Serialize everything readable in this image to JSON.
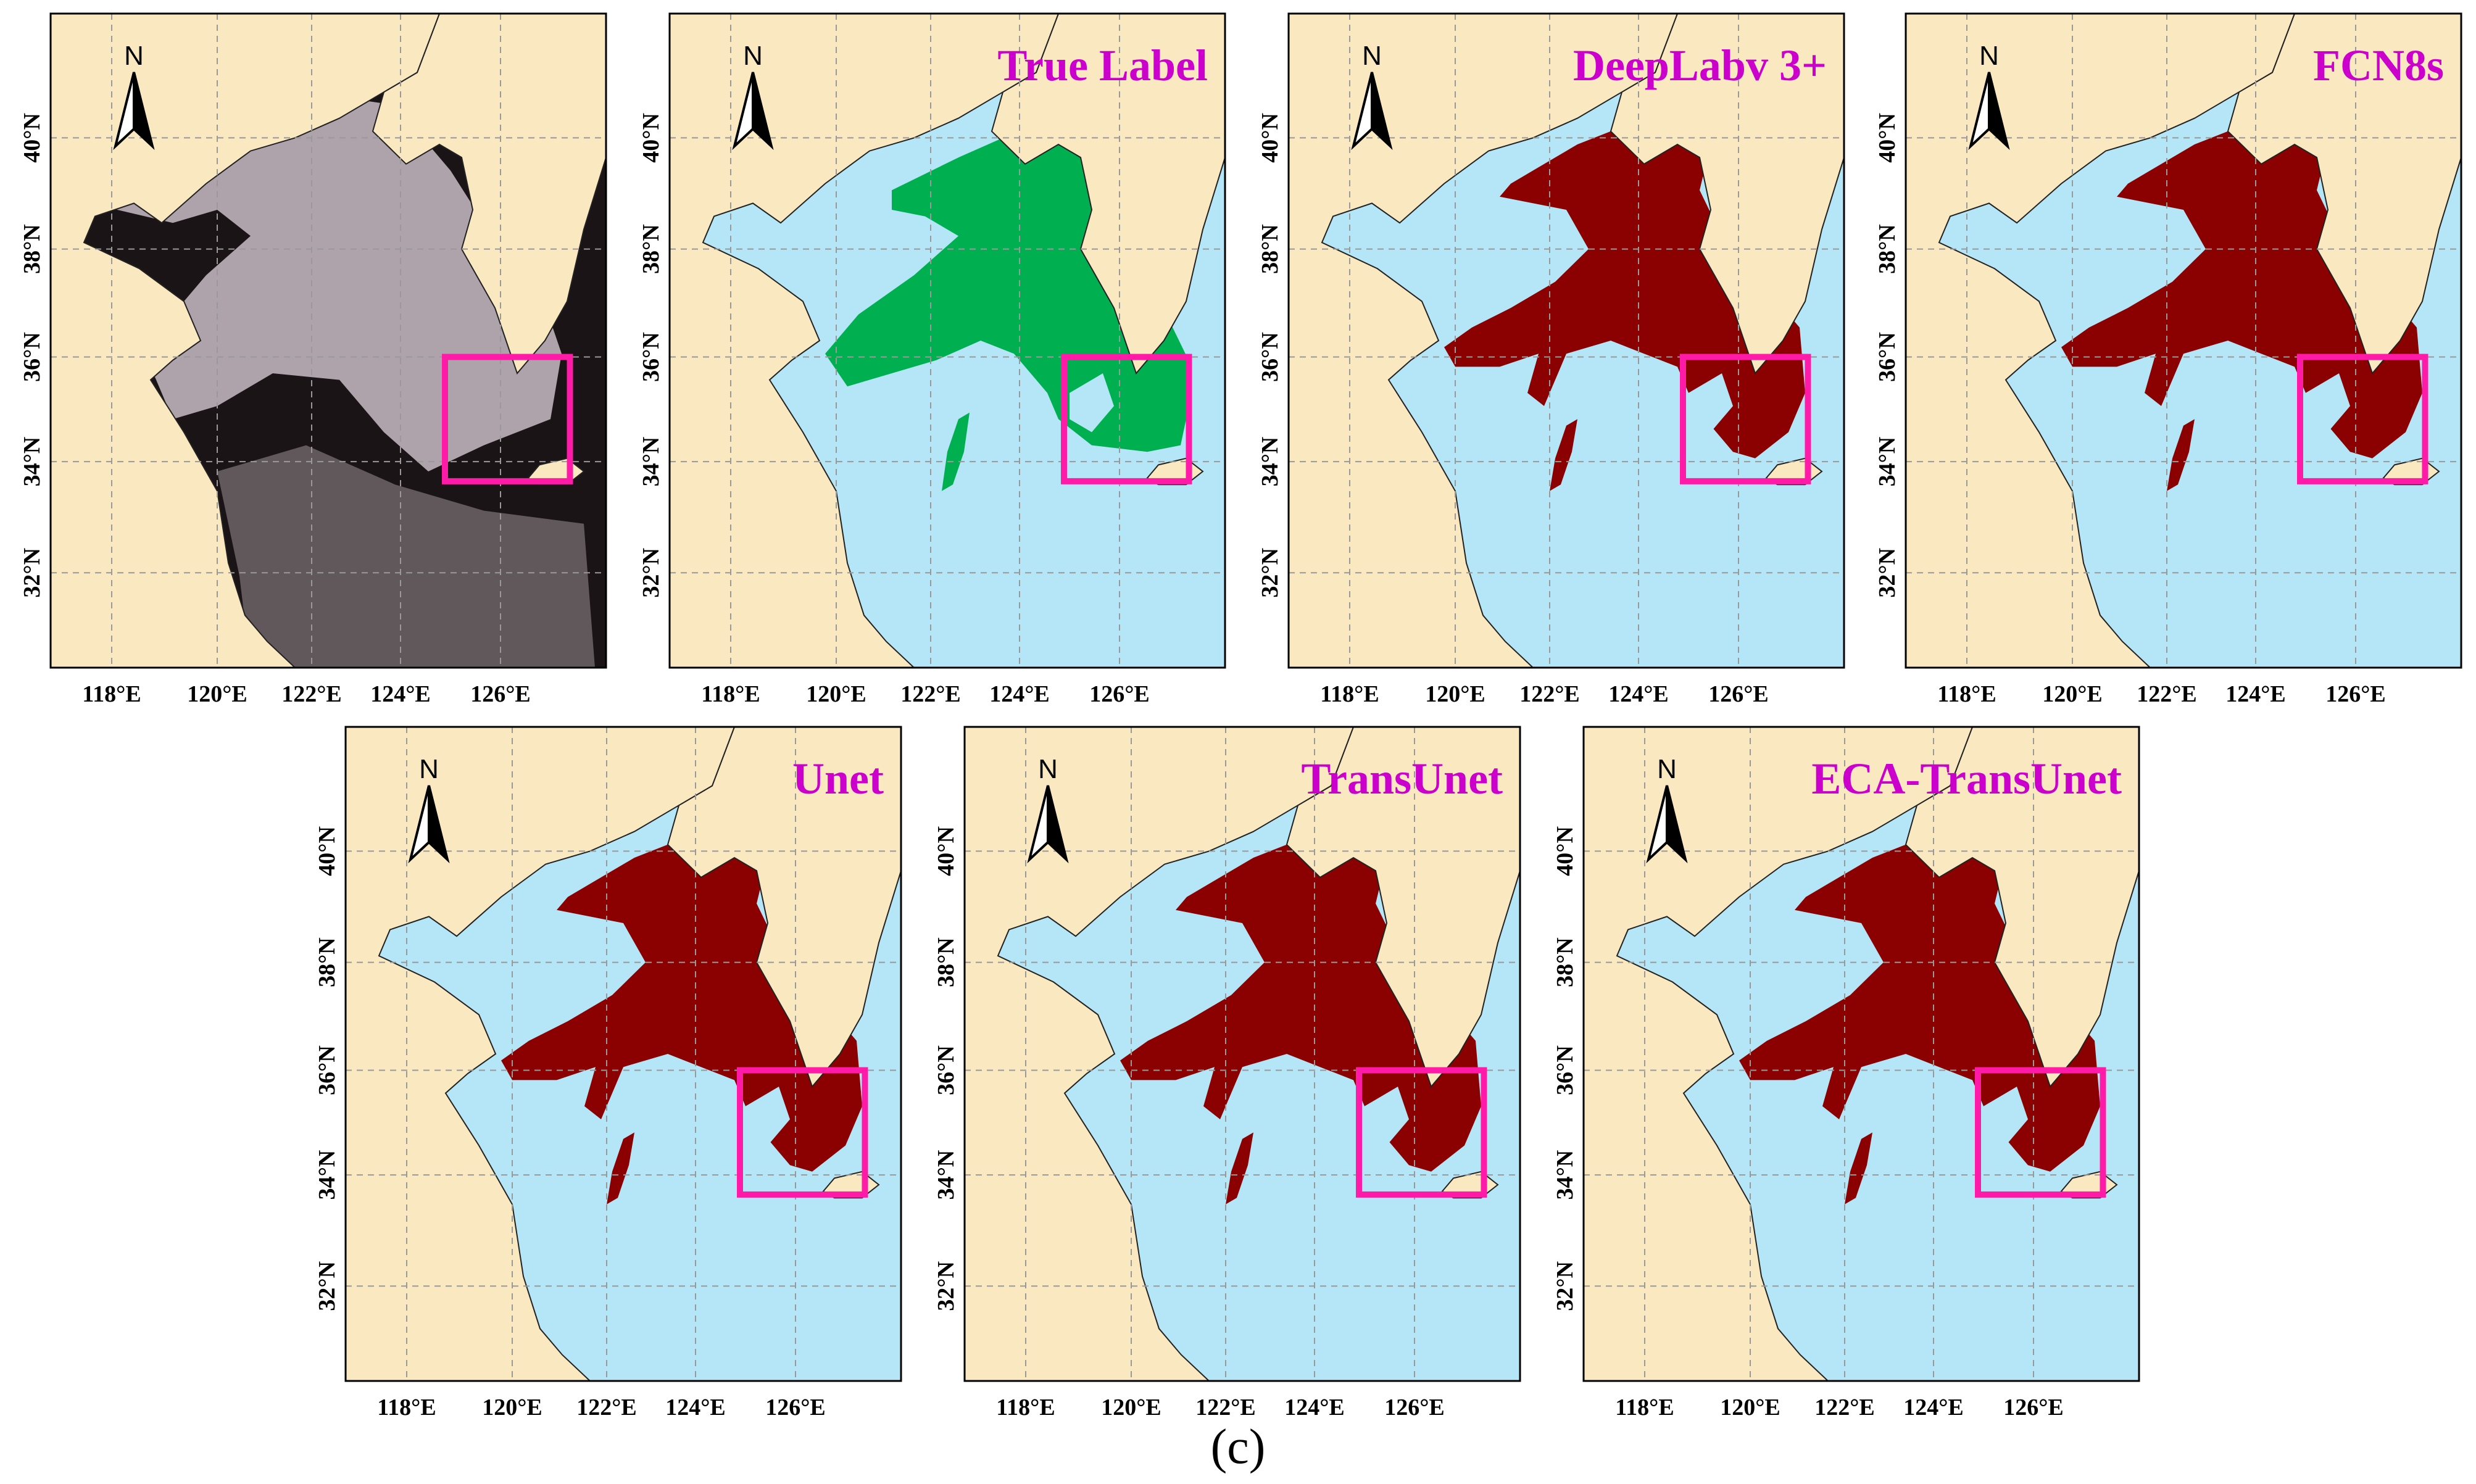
{
  "colors": {
    "land": "#fae8c0",
    "sea": "#b5e6f8",
    "true_label": "#00b050",
    "prediction": "#8b0000",
    "highlight_box": "#ff1aa8",
    "title_text": "#cc00cc",
    "frame": "#000000",
    "coast": "#222222",
    "grid": "#999999",
    "satellite_sea": "#1b1416",
    "satellite_cloud": "#c8bcc4"
  },
  "icons": {
    "north_arrow": "north-arrow-icon"
  },
  "north_label": "N",
  "latitude_labels": [
    "40°N",
    "38°N",
    "36°N",
    "34°N",
    "32°N"
  ],
  "longitude_labels": [
    "118°E",
    "120°E",
    "122°E",
    "124°E",
    "126°E"
  ],
  "panels": [
    {
      "id": "satellite",
      "title": "",
      "layer": "satellite"
    },
    {
      "id": "true-label",
      "title": "True Label",
      "layer": "true_label"
    },
    {
      "id": "deeplabv3",
      "title": "DeepLabv 3+",
      "layer": "prediction"
    },
    {
      "id": "fcn8s",
      "title": "FCN8s",
      "layer": "prediction"
    },
    {
      "id": "unet",
      "title": "Unet",
      "layer": "prediction"
    },
    {
      "id": "transunet",
      "title": "TransUnet",
      "layer": "prediction"
    },
    {
      "id": "eca-transunet",
      "title": "ECA-TransUnet",
      "layer": "prediction"
    }
  ],
  "caption": "(c)"
}
